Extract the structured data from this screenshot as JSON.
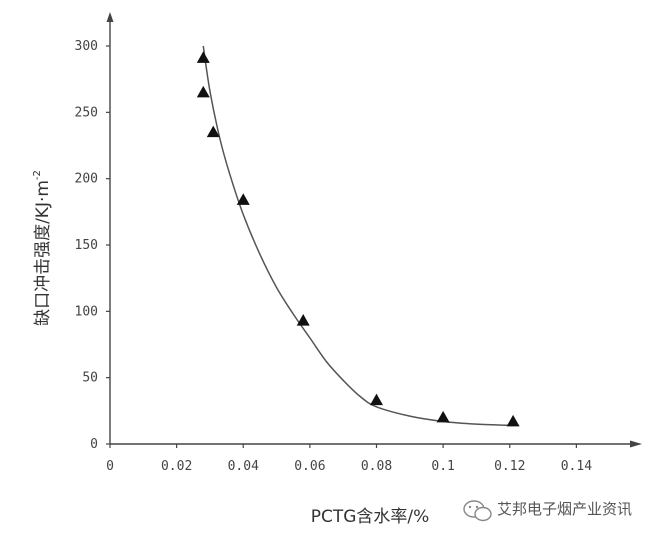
{
  "chart_data": {
    "type": "scatter",
    "title": "",
    "xlabel": "PCTG含水率/%",
    "ylabel": "缺口冲击强度/KJ·m",
    "ylabel_superscript": "-2",
    "xlim": [
      0,
      0.15
    ],
    "ylim": [
      0,
      310
    ],
    "x_ticks": [
      0,
      0.02,
      0.04,
      0.06,
      0.08,
      0.1,
      0.12,
      0.14
    ],
    "x_tick_labels": [
      "0",
      "0.02",
      "0.04",
      "0.06",
      "0.08",
      "0.1",
      "0.12",
      "0.14"
    ],
    "y_ticks": [
      0,
      50,
      100,
      150,
      200,
      250,
      300
    ],
    "y_tick_labels": [
      "0",
      "50",
      "100",
      "150",
      "200",
      "250",
      "300"
    ],
    "grid": false,
    "marker": "triangle",
    "series": [
      {
        "points": [
          {
            "x": 0.028,
            "y": 291
          },
          {
            "x": 0.028,
            "y": 265
          },
          {
            "x": 0.031,
            "y": 235
          },
          {
            "x": 0.04,
            "y": 184
          },
          {
            "x": 0.058,
            "y": 93
          },
          {
            "x": 0.08,
            "y": 33
          },
          {
            "x": 0.1,
            "y": 20
          },
          {
            "x": 0.121,
            "y": 17
          }
        ]
      }
    ],
    "fit_curve": [
      {
        "x": 0.028,
        "y": 300
      },
      {
        "x": 0.03,
        "y": 266
      },
      {
        "x": 0.033,
        "y": 230
      },
      {
        "x": 0.036,
        "y": 203
      },
      {
        "x": 0.04,
        "y": 173
      },
      {
        "x": 0.045,
        "y": 143
      },
      {
        "x": 0.05,
        "y": 118
      },
      {
        "x": 0.055,
        "y": 98
      },
      {
        "x": 0.06,
        "y": 80
      },
      {
        "x": 0.065,
        "y": 62
      },
      {
        "x": 0.07,
        "y": 48
      },
      {
        "x": 0.075,
        "y": 36
      },
      {
        "x": 0.08,
        "y": 28
      },
      {
        "x": 0.09,
        "y": 21
      },
      {
        "x": 0.1,
        "y": 17
      },
      {
        "x": 0.11,
        "y": 15
      },
      {
        "x": 0.121,
        "y": 14
      }
    ]
  },
  "watermark": {
    "text": "艾邦电子烟产业资讯",
    "icon": "wechat-icon"
  }
}
